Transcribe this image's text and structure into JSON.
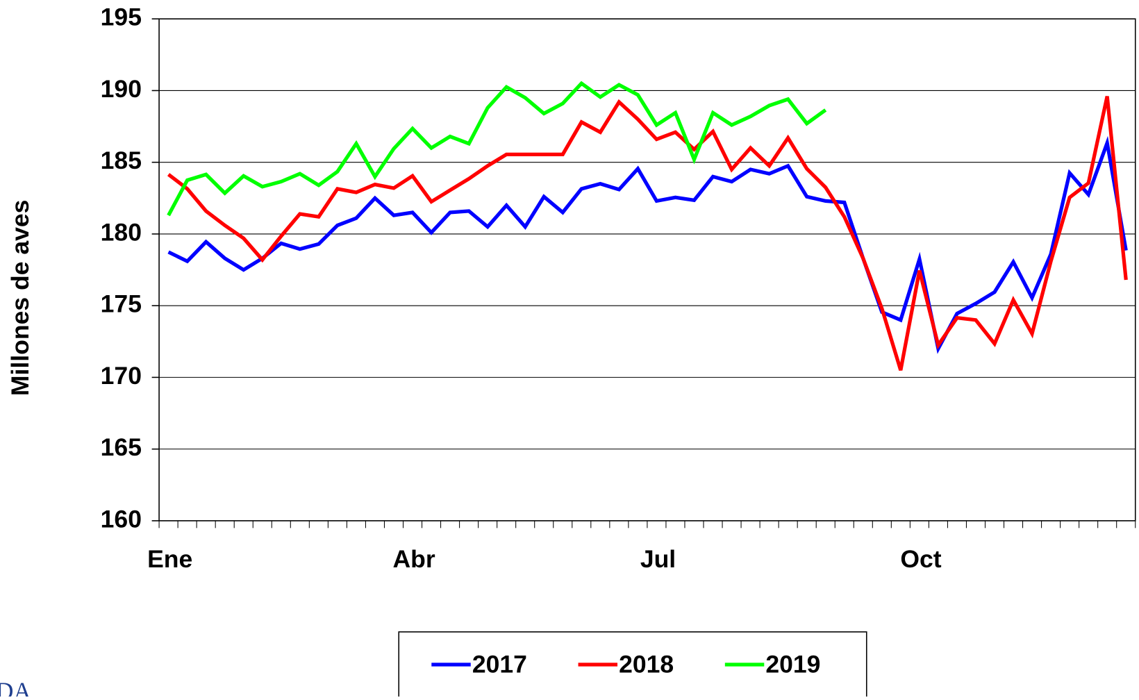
{
  "chart_data": {
    "type": "line",
    "ylabel": "Millones de aves",
    "categories": [
      "Ene",
      null,
      null,
      null,
      null,
      null,
      null,
      null,
      null,
      null,
      null,
      null,
      null,
      "Abr",
      null,
      null,
      null,
      null,
      null,
      null,
      null,
      null,
      null,
      null,
      null,
      null,
      "Jul",
      null,
      null,
      null,
      null,
      null,
      null,
      null,
      null,
      null,
      null,
      null,
      null,
      null,
      "Oct",
      null,
      null,
      null,
      null,
      null,
      null,
      null,
      null,
      null,
      null,
      null
    ],
    "series": [
      {
        "name": "2017",
        "color": "#0000ff",
        "values": [
          178.74,
          178.1,
          179.45,
          178.3,
          177.5,
          178.3,
          179.35,
          178.95,
          179.3,
          180.6,
          181.1,
          182.5,
          181.3,
          181.5,
          180.1,
          181.5,
          181.6,
          180.5,
          182.0,
          180.5,
          182.6,
          181.5,
          183.15,
          183.5,
          183.1,
          184.55,
          182.3,
          182.55,
          182.35,
          184.0,
          183.65,
          184.5,
          184.2,
          184.75,
          182.6,
          182.3,
          182.2,
          178.3,
          174.55,
          174.0,
          178.25,
          172.0,
          174.45,
          175.15,
          175.95,
          178.05,
          175.55,
          178.6,
          184.25,
          182.75,
          186.35,
          178.85
        ]
      },
      {
        "name": "2018",
        "color": "#ff0000",
        "values": [
          184.15,
          183.15,
          181.6,
          180.6,
          179.7,
          178.2,
          179.85,
          181.4,
          181.2,
          183.15,
          182.9,
          183.45,
          183.2,
          184.05,
          182.25,
          183.05,
          183.85,
          184.75,
          185.55,
          185.55,
          185.55,
          185.55,
          187.8,
          187.1,
          189.2,
          188.0,
          186.6,
          187.1,
          185.9,
          187.15,
          184.5,
          186.0,
          184.75,
          186.7,
          184.55,
          183.25,
          181.2,
          178.3,
          174.8,
          170.5,
          177.45,
          172.25,
          174.15,
          174.0,
          172.35,
          175.4,
          173.05,
          178.1,
          182.55,
          183.55,
          189.6,
          176.8
        ]
      },
      {
        "name": "2019",
        "color": "#00ff00",
        "values": [
          181.3,
          183.75,
          184.15,
          182.85,
          184.05,
          183.3,
          183.65,
          184.2,
          183.4,
          184.35,
          186.3,
          184.0,
          185.95,
          187.35,
          186.0,
          186.8,
          186.3,
          188.8,
          190.25,
          189.5,
          188.4,
          189.1,
          190.5,
          189.55,
          190.4,
          189.7,
          187.6,
          188.45,
          185.2,
          188.45,
          187.6,
          188.2,
          188.95,
          189.4,
          187.7,
          188.65,
          null,
          null,
          null,
          null,
          null,
          null,
          null,
          null,
          null,
          null,
          null,
          null,
          null,
          null,
          null,
          null
        ]
      }
    ],
    "ylim": [
      160,
      195
    ],
    "yticks": [
      160,
      165,
      170,
      175,
      180,
      185,
      190,
      195
    ],
    "grid": true,
    "legend": "bottom"
  },
  "logo_text": "DA"
}
